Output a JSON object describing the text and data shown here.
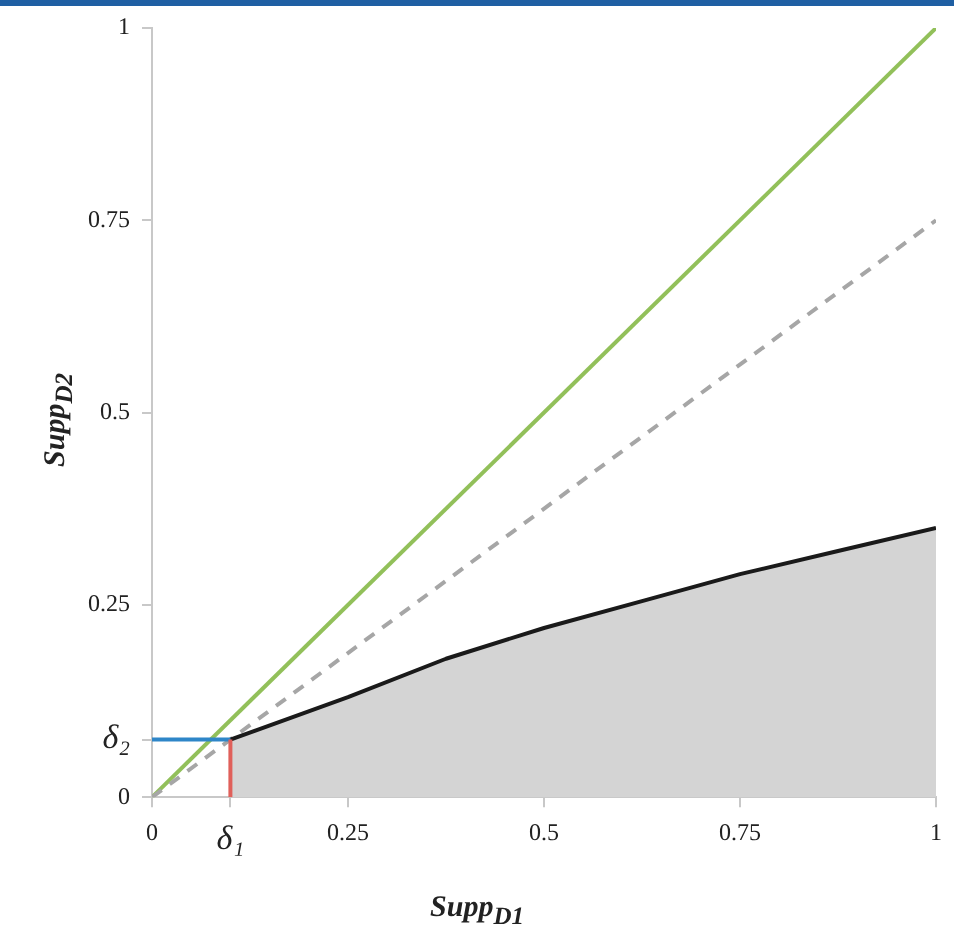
{
  "chart_data": {
    "type": "line",
    "xlabel": "Supp$_{D1}$",
    "ylabel": "Supp$_{D2}$",
    "xlim": [
      0,
      1
    ],
    "ylim": [
      0,
      1
    ],
    "xticks": [
      0,
      {
        "value": 0.1,
        "label": "δ₁"
      },
      0.25,
      0.5,
      0.75,
      1
    ],
    "yticks": [
      0,
      {
        "value": 0.075,
        "label": "δ₂"
      },
      0.25,
      0.5,
      0.75,
      1
    ],
    "grid": false,
    "legend": false,
    "marker": "none",
    "series": [
      {
        "color": "#92c05a",
        "x": [
          0,
          1
        ],
        "values": [
          0,
          1
        ]
      },
      {
        "color": "#a6a6a6",
        "line_style": "dashed",
        "x": [
          0,
          1
        ],
        "values": [
          0,
          0.75
        ]
      },
      {
        "type": "area",
        "color": "#1a1a1a",
        "x": [
          0.1,
          0.25,
          0.375,
          0.5,
          0.625,
          0.75,
          0.875,
          1
        ],
        "values": [
          0.075,
          0.13,
          0.18,
          0.22,
          0.255,
          0.29,
          0.32,
          0.35
        ]
      },
      {
        "color": "#2e86c8",
        "x": [
          0,
          0.1
        ],
        "values": [
          0.075,
          0.075
        ]
      },
      {
        "color": "#e0605a",
        "x": [
          0.1,
          0.1
        ],
        "values": [
          0,
          0.075
        ]
      }
    ]
  }
}
